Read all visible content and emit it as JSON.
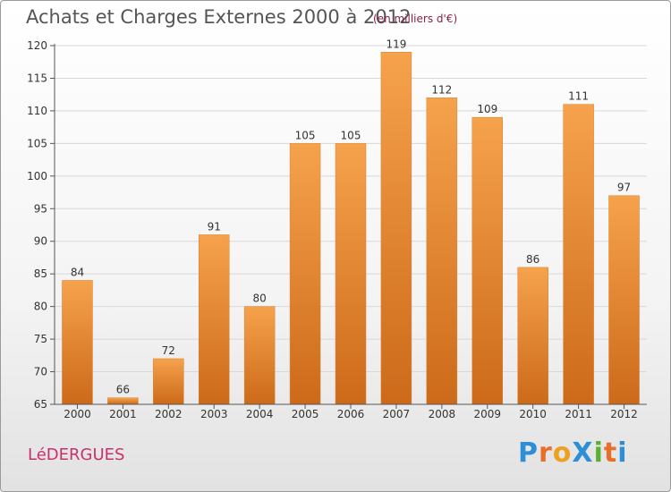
{
  "title": "Achats et Charges Externes 2000 à 2012",
  "subtitle": "(en milliers d'€)",
  "commune": "LéDERGUES",
  "logo": {
    "text": "ProXiti",
    "letters": [
      {
        "ch": "P",
        "color": "#2f8fd6"
      },
      {
        "ch": "r",
        "color": "#e86f2a"
      },
      {
        "ch": "o",
        "color": "#f0a020"
      },
      {
        "ch": "X",
        "color": "#2f8fd6"
      },
      {
        "ch": "i",
        "color": "#5bb031"
      },
      {
        "ch": "t",
        "color": "#e86f2a"
      },
      {
        "ch": "i",
        "color": "#2f8fd6"
      }
    ]
  },
  "colors": {
    "bar_top": "#f6a24c",
    "bar_bottom": "#cc6a1a",
    "axis": "#555555",
    "grid": "#d8d8d8",
    "text": "#333333"
  },
  "chart_data": {
    "type": "bar",
    "categories": [
      "2000",
      "2001",
      "2002",
      "2003",
      "2004",
      "2005",
      "2006",
      "2007",
      "2008",
      "2009",
      "2010",
      "2011",
      "2012"
    ],
    "values": [
      84,
      66,
      72,
      91,
      80,
      105,
      105,
      119,
      112,
      109,
      86,
      111,
      97
    ],
    "ylim": [
      65,
      120
    ],
    "yticks": [
      65,
      70,
      75,
      80,
      85,
      90,
      95,
      100,
      105,
      110,
      115,
      120
    ],
    "grid": true
  }
}
